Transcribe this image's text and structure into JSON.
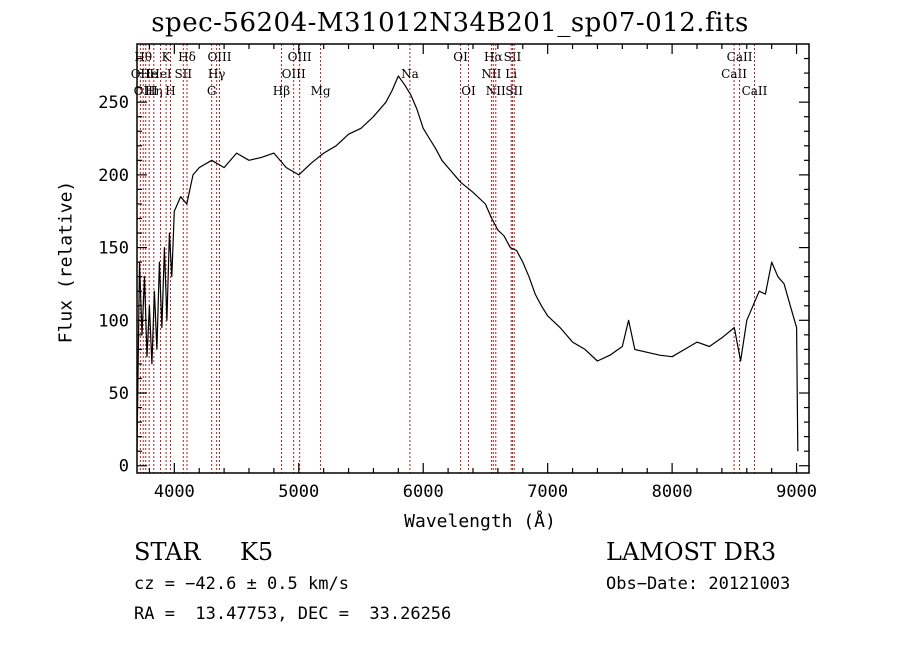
{
  "chart_data": {
    "type": "line",
    "title": "spec-56204-M31012N34B201_sp07-012.fits",
    "xlabel": "Wavelength (Å)",
    "ylabel": "Flux (relative)",
    "xlim": [
      3700,
      9100
    ],
    "ylim": [
      -5,
      290
    ],
    "x_ticks": [
      4000,
      5000,
      6000,
      7000,
      8000,
      9000
    ],
    "y_ticks": [
      0,
      50,
      100,
      150,
      200,
      250
    ],
    "grid": false,
    "series": [
      {
        "points": [
          [
            3700,
            10
          ],
          [
            3720,
            140
          ],
          [
            3740,
            90
          ],
          [
            3760,
            130
          ],
          [
            3780,
            75
          ],
          [
            3800,
            110
          ],
          [
            3820,
            70
          ],
          [
            3840,
            120
          ],
          [
            3860,
            80
          ],
          [
            3880,
            140
          ],
          [
            3900,
            95
          ],
          [
            3920,
            150
          ],
          [
            3940,
            100
          ],
          [
            3960,
            160
          ],
          [
            3980,
            130
          ],
          [
            4000,
            175
          ],
          [
            4050,
            185
          ],
          [
            4100,
            180
          ],
          [
            4150,
            200
          ],
          [
            4200,
            205
          ],
          [
            4300,
            210
          ],
          [
            4400,
            205
          ],
          [
            4500,
            215
          ],
          [
            4600,
            210
          ],
          [
            4700,
            212
          ],
          [
            4800,
            215
          ],
          [
            4900,
            205
          ],
          [
            5000,
            200
          ],
          [
            5100,
            208
          ],
          [
            5200,
            215
          ],
          [
            5300,
            220
          ],
          [
            5400,
            228
          ],
          [
            5500,
            232
          ],
          [
            5600,
            240
          ],
          [
            5700,
            250
          ],
          [
            5750,
            258
          ],
          [
            5800,
            268
          ],
          [
            5850,
            262
          ],
          [
            5900,
            255
          ],
          [
            5950,
            245
          ],
          [
            6000,
            232
          ],
          [
            6050,
            225
          ],
          [
            6100,
            218
          ],
          [
            6150,
            210
          ],
          [
            6200,
            205
          ],
          [
            6300,
            195
          ],
          [
            6400,
            188
          ],
          [
            6500,
            180
          ],
          [
            6550,
            170
          ],
          [
            6600,
            162
          ],
          [
            6650,
            158
          ],
          [
            6700,
            150
          ],
          [
            6750,
            148
          ],
          [
            6800,
            140
          ],
          [
            6850,
            130
          ],
          [
            6900,
            118
          ],
          [
            6950,
            110
          ],
          [
            7000,
            103
          ],
          [
            7100,
            95
          ],
          [
            7200,
            85
          ],
          [
            7300,
            80
          ],
          [
            7400,
            72
          ],
          [
            7500,
            76
          ],
          [
            7600,
            82
          ],
          [
            7650,
            100
          ],
          [
            7700,
            80
          ],
          [
            7800,
            78
          ],
          [
            7900,
            76
          ],
          [
            8000,
            75
          ],
          [
            8100,
            80
          ],
          [
            8200,
            85
          ],
          [
            8300,
            82
          ],
          [
            8400,
            88
          ],
          [
            8500,
            95
          ],
          [
            8550,
            72
          ],
          [
            8600,
            100
          ],
          [
            8650,
            110
          ],
          [
            8700,
            120
          ],
          [
            8750,
            118
          ],
          [
            8800,
            140
          ],
          [
            8850,
            130
          ],
          [
            8900,
            125
          ],
          [
            8950,
            110
          ],
          [
            9000,
            95
          ],
          [
            9010,
            10
          ]
        ]
      }
    ],
    "lines": [
      {
        "wl": 3727,
        "label": "OII",
        "row": 1
      },
      {
        "wl": 3750,
        "label": "Hθ",
        "row": 0
      },
      {
        "wl": 3770,
        "label": "OIII",
        "row": 2
      },
      {
        "wl": 3798,
        "label": "He",
        "row": 1
      },
      {
        "wl": 3835,
        "label": "Hη",
        "row": 2
      },
      {
        "wl": 3889,
        "label": "HeI",
        "row": 1
      },
      {
        "wl": 3934,
        "label": "K",
        "row": 0
      },
      {
        "wl": 3969,
        "label": "H",
        "row": 2
      },
      {
        "wl": 4072,
        "label": "SII",
        "row": 1
      },
      {
        "wl": 4102,
        "label": "Hδ",
        "row": 0
      },
      {
        "wl": 4300,
        "label": "G",
        "row": 2
      },
      {
        "wl": 4340,
        "label": "Hγ",
        "row": 1
      },
      {
        "wl": 4363,
        "label": "OIII",
        "row": 0
      },
      {
        "wl": 4861,
        "label": "Hβ",
        "row": 2
      },
      {
        "wl": 4959,
        "label": "OIII",
        "row": 1
      },
      {
        "wl": 5007,
        "label": "OIII",
        "row": 0
      },
      {
        "wl": 5175,
        "label": "Mg",
        "row": 2
      },
      {
        "wl": 5893,
        "label": "Na",
        "row": 1
      },
      {
        "wl": 6300,
        "label": "OI",
        "row": 0
      },
      {
        "wl": 6364,
        "label": "OI",
        "row": 2
      },
      {
        "wl": 6548,
        "label": "NII",
        "row": 1
      },
      {
        "wl": 6563,
        "label": "Hα",
        "row": 0
      },
      {
        "wl": 6583,
        "label": "NII",
        "row": 2
      },
      {
        "wl": 6707,
        "label": "Li",
        "row": 1
      },
      {
        "wl": 6717,
        "label": "SII",
        "row": 0
      },
      {
        "wl": 6731,
        "label": "SII",
        "row": 2
      },
      {
        "wl": 8498,
        "label": "CaII",
        "row": 1
      },
      {
        "wl": 8542,
        "label": "CaII",
        "row": 0
      },
      {
        "wl": 8662,
        "label": "CaII",
        "row": 2
      }
    ],
    "colors": {
      "spectrum": "#000000",
      "lines": "#b22222",
      "axes": "#000000"
    }
  },
  "info": {
    "class": "STAR",
    "subclass": "K5",
    "survey": "LAMOST DR3",
    "cz": "cz = −42.6 ± 0.5 km/s",
    "obs_date": "Obs−Date: 20121003",
    "coords": "RA =  13.47753, DEC =  33.26256"
  }
}
